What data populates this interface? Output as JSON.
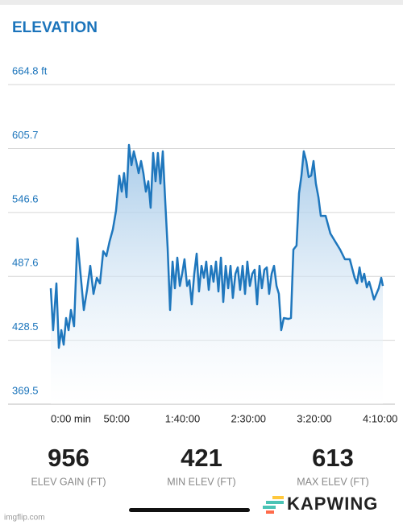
{
  "chart_data": {
    "type": "area",
    "title": "ELEVATION",
    "color": "#1f77bd",
    "x": [
      0,
      1.8,
      4.3,
      6.1,
      8.0,
      9.8,
      11.6,
      13.5,
      15.3,
      17.7,
      20.2,
      22.6,
      25.1,
      27.5,
      30.0,
      32.4,
      34.9,
      37.3,
      39.8,
      42.2,
      44.6,
      47.1,
      49.5,
      52.0,
      53.8,
      55.6,
      57.5,
      59.3,
      61.2,
      63.0,
      64.8,
      66.7,
      68.5,
      70.3,
      72.2,
      74.0,
      75.8,
      77.7,
      79.5,
      81.3,
      83.2,
      85.0,
      86.8,
      88.7,
      90.5,
      92.4,
      94.2,
      96.0,
      97.9,
      99.7,
      101.5,
      103.4,
      105.2,
      107.0,
      108.9,
      110.7,
      112.5,
      114.4,
      116.2,
      118.0,
      119.9,
      121.7,
      123.5,
      125.4,
      127.2,
      129.1,
      130.9,
      132.7,
      134.6,
      136.4,
      138.2,
      140.1,
      141.9,
      143.7,
      145.6,
      147.4,
      149.2,
      151.1,
      152.9,
      154.7,
      156.6,
      158.4,
      160.2,
      162.1,
      163.9,
      165.7,
      167.6,
      169.4,
      171.3,
      173.1,
      174.9,
      176.8,
      180.4,
      182.3,
      184.1,
      186.5,
      188.4,
      190.2,
      192.0,
      193.9,
      195.7,
      197.6,
      199.4,
      201.2,
      203.1,
      204.9,
      208.6,
      212.2,
      215.9,
      219.6,
      223.2,
      226.9,
      230.6,
      232.4,
      234.3,
      236.1,
      237.9,
      239.8,
      241.6,
      243.4,
      245.3,
      247.1,
      248.9,
      250.8,
      252.0
    ],
    "values": [
      476.6,
      437.9,
      481.1,
      421.6,
      437.9,
      424.5,
      449.1,
      437.9,
      456.5,
      441.6,
      522.7,
      490.0,
      456.5,
      475.1,
      497.4,
      471.4,
      486.3,
      481.1,
      510.8,
      506.4,
      519.7,
      530.9,
      548.0,
      580.7,
      565.9,
      583.0,
      560.7,
      609.0,
      590.4,
      603.1,
      594.1,
      583.0,
      594.1,
      583.0,
      565.9,
      575.5,
      551.0,
      601.6,
      575.5,
      601.6,
      573.3,
      603.1,
      558.4,
      513.8,
      456.5,
      501.2,
      476.6,
      504.9,
      478.8,
      490.0,
      503.4,
      478.8,
      484.0,
      461.7,
      490.0,
      508.6,
      473.6,
      497.4,
      486.3,
      501.2,
      475.1,
      497.4,
      482.6,
      501.2,
      473.6,
      504.9,
      464.0,
      497.4,
      476.6,
      497.4,
      467.7,
      490.0,
      495.9,
      475.1,
      497.4,
      471.4,
      501.2,
      478.8,
      490.0,
      493.7,
      461.7,
      497.4,
      476.6,
      493.7,
      495.9,
      471.4,
      490.0,
      497.4,
      478.8,
      471.4,
      437.9,
      449.1,
      448.3,
      449.1,
      512.3,
      516.0,
      564.4,
      580.7,
      603.1,
      594.1,
      579.3,
      580.7,
      594.1,
      573.3,
      560.7,
      543.5,
      543.5,
      527.2,
      519.7,
      512.3,
      503.4,
      503.4,
      486.3,
      481.1,
      495.9,
      482.6,
      490.0,
      477.4,
      482.6,
      475.1,
      466.2,
      471.4,
      476.6,
      486.3,
      478.8
    ],
    "xlim": [
      0,
      252
    ],
    "xticks": [
      {
        "value": 0,
        "label": "0:00 min"
      },
      {
        "value": 50,
        "label": "50:00"
      },
      {
        "value": 100,
        "label": "1:40:00"
      },
      {
        "value": 150,
        "label": "2:30:00"
      },
      {
        "value": 200,
        "label": "3:20:00"
      },
      {
        "value": 250,
        "label": "4:10:00"
      }
    ],
    "ylim": [
      369.5,
      664.8
    ],
    "yticks": [
      369.5,
      428.5,
      487.6,
      546.6,
      605.7,
      {
        "value": 664.8,
        "label": "664.8 ft"
      }
    ],
    "grid": true
  },
  "stats": [
    {
      "value": "956",
      "label": "ELEV GAIN (FT)"
    },
    {
      "value": "421",
      "label": "MIN ELEV (FT)"
    },
    {
      "value": "613",
      "label": "MAX ELEV (FT)"
    }
  ],
  "watermark": "imgflip.com",
  "logo": "KAPWING"
}
